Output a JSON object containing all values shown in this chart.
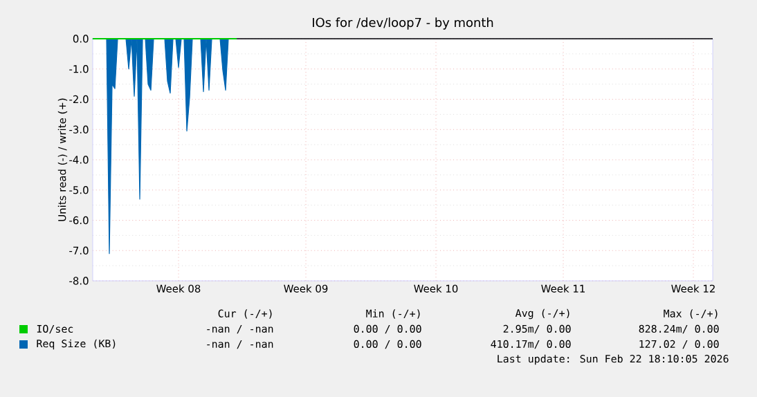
{
  "chart_data": {
    "type": "area",
    "title": "IOs for /dev/loop7 - by month",
    "ylabel": "Units read (-) / write (+)",
    "categories": [
      null,
      null,
      null,
      null,
      null,
      null,
      null,
      null,
      null,
      null,
      null,
      null,
      null,
      null,
      null,
      null,
      null,
      null,
      null,
      null,
      null,
      null,
      null,
      null,
      null,
      null,
      null,
      null,
      null,
      null,
      null,
      "Week 08",
      null,
      null,
      null,
      null,
      null,
      null,
      null,
      null,
      null,
      null,
      null,
      null,
      null,
      null,
      null,
      null,
      null,
      null,
      null,
      null,
      null,
      null,
      null,
      null,
      null,
      null,
      null,
      null,
      null,
      null,
      null,
      null,
      null,
      null,
      null,
      null,
      null,
      null,
      null,
      null,
      null,
      null,
      null,
      null,
      null,
      "Week 09",
      null,
      null,
      null,
      null,
      null,
      null,
      null,
      null,
      null,
      null,
      null,
      null,
      null,
      null,
      null,
      null,
      null,
      null,
      null,
      null,
      null,
      null,
      null,
      null,
      null,
      null,
      null,
      null,
      null,
      null,
      null,
      null,
      null,
      null,
      null,
      null,
      null,
      null,
      null,
      null,
      null,
      null,
      null,
      null,
      null,
      null,
      "Week 10",
      null,
      null,
      null,
      null,
      null,
      null,
      null,
      null,
      null,
      null,
      null,
      null,
      null,
      null,
      null,
      null,
      null,
      null,
      null,
      null,
      null,
      null,
      null,
      null,
      null,
      null,
      null,
      null,
      null,
      null,
      null,
      null,
      null,
      null,
      null,
      null,
      null,
      null,
      null,
      null,
      null,
      null,
      null,
      null,
      null,
      "Week 11",
      null,
      null,
      null,
      null,
      null,
      null,
      null,
      null,
      null,
      null,
      null,
      null,
      null,
      null,
      null,
      null,
      null,
      null,
      null,
      null,
      null,
      null,
      null,
      null,
      null,
      null,
      null,
      null,
      null,
      null,
      null,
      null,
      null,
      null,
      null,
      null,
      null,
      null,
      null,
      null,
      null,
      null,
      null,
      null,
      null,
      null,
      "Week 12",
      null,
      null,
      null,
      null,
      null,
      null,
      null
    ],
    "ylim": [
      -8,
      0
    ],
    "yticks": [
      {
        "value": -8,
        "label": "-8.0"
      },
      {
        "value": -7,
        "label": "-7.0"
      },
      {
        "value": -6,
        "label": "-6.0"
      },
      {
        "value": -5,
        "label": "-5.0"
      },
      {
        "value": -4,
        "label": "-4.0"
      },
      {
        "value": -3,
        "label": "-3.0"
      },
      {
        "value": -2,
        "label": "-2.0"
      },
      {
        "value": -1,
        "label": "-1.0"
      },
      {
        "value": 0,
        "label": "0.0"
      }
    ],
    "grid": true,
    "legend": "bottom",
    "series": [
      {
        "name": "IO/sec",
        "color": "#00cc00",
        "type": "line",
        "values": [
          0,
          0,
          0,
          0,
          0,
          0,
          0,
          0,
          0,
          0,
          0,
          0,
          0,
          0,
          0,
          0,
          0,
          0,
          0,
          0,
          0,
          0,
          0,
          0,
          0,
          0,
          0,
          0,
          0,
          0,
          0,
          0,
          0,
          0,
          0,
          0,
          0,
          0,
          0,
          0,
          0,
          0,
          0,
          0,
          0,
          0,
          0,
          0,
          0,
          0,
          0,
          0,
          0,
          null,
          null,
          null,
          null,
          null,
          null,
          null,
          null,
          null,
          null,
          null,
          null,
          null,
          null,
          null,
          null,
          null,
          null,
          null,
          null,
          null,
          null,
          null,
          null,
          null,
          null,
          null,
          null,
          null,
          null,
          null,
          null,
          null,
          null,
          null,
          null,
          null,
          null,
          null,
          null,
          null,
          null,
          null,
          null,
          null,
          null,
          null,
          null,
          null,
          null,
          null,
          null,
          null,
          null,
          null,
          null,
          null,
          null,
          null,
          null,
          null,
          null,
          null,
          null,
          null,
          null,
          null,
          null,
          null,
          null,
          null,
          null,
          null,
          null,
          null,
          null,
          null,
          null,
          null,
          null,
          null,
          null,
          null,
          null,
          null,
          null,
          null,
          null,
          null,
          null,
          null,
          null,
          null,
          null,
          null,
          null,
          null,
          null,
          null,
          null,
          null,
          null,
          null,
          null,
          null,
          null,
          null,
          null,
          null,
          null,
          null,
          null,
          null,
          null,
          null,
          null,
          null,
          null,
          null,
          null,
          null,
          null,
          null,
          null,
          null,
          null,
          null,
          null,
          null,
          null,
          null,
          null,
          null,
          null,
          null,
          null,
          null,
          null,
          null,
          null,
          null,
          null,
          null,
          null,
          null,
          null,
          null,
          null,
          null,
          null,
          null,
          null,
          null,
          null,
          null,
          null,
          null,
          null,
          null,
          null,
          null,
          null,
          null,
          null,
          null,
          null,
          null,
          null,
          null,
          null,
          null,
          null
        ]
      },
      {
        "name": "Req Size (KB)",
        "color": "#0066b3",
        "values": [
          0,
          0,
          0,
          0,
          0,
          0,
          -7.1,
          -1.5,
          -1.65,
          0,
          0,
          0,
          0,
          -1.0,
          0,
          -1.9,
          0,
          -5.3,
          0,
          0,
          -1.5,
          -1.7,
          0,
          0,
          0,
          0,
          0,
          -1.4,
          -1.8,
          0,
          0,
          -0.95,
          0,
          0,
          -3.05,
          -1.95,
          0,
          0,
          0,
          0,
          -1.75,
          0,
          -1.7,
          0,
          0,
          0,
          0,
          -1.05,
          -1.7,
          0,
          0,
          0,
          0,
          null,
          null,
          null,
          null,
          null,
          null,
          null,
          null,
          null,
          null,
          null,
          null,
          null,
          null,
          null,
          null,
          null,
          null,
          null,
          null,
          null,
          null,
          null,
          null,
          null,
          null,
          null,
          null,
          null,
          null,
          null,
          null,
          null,
          null,
          null,
          null,
          null,
          null,
          null,
          null,
          null,
          null,
          null,
          null,
          null,
          null,
          null,
          null,
          null,
          null,
          null,
          null,
          null,
          null,
          null,
          null,
          null,
          null,
          null,
          null,
          null,
          null,
          null,
          null,
          null,
          null,
          null,
          null,
          null,
          null,
          null,
          null,
          null,
          null,
          null,
          null,
          null,
          null,
          null,
          null,
          null,
          null,
          null,
          null,
          null,
          null,
          null,
          null,
          null,
          null,
          null,
          null,
          null,
          null,
          null,
          null,
          null,
          null,
          null,
          null,
          null,
          null,
          null,
          null,
          null,
          null,
          null,
          null,
          null,
          null,
          null,
          null,
          null,
          null,
          null,
          null,
          null,
          null,
          null,
          null,
          null,
          null,
          null,
          null,
          null,
          null,
          null,
          null,
          null,
          null,
          null,
          null,
          null,
          null,
          null,
          null,
          null,
          null,
          null,
          null,
          null,
          null,
          null,
          null,
          null,
          null,
          null,
          null,
          null,
          null,
          null,
          null,
          null,
          null,
          null,
          null,
          null,
          null,
          null,
          null,
          null,
          null,
          null,
          null,
          null,
          null,
          null,
          null,
          null,
          null,
          null,
          null
        ]
      }
    ],
    "annotations": [
      "Cur (-/+)",
      "Min (-/+)",
      "Avg (-/+)",
      "Max (-/+)",
      "-nan / -nan",
      "0.00 / 0.00",
      "2.95m/ 0.00",
      "828.24m/ 0.00",
      "-nan / -nan",
      "0.00 / 0.00",
      "410.17m/ 0.00",
      "127.02 / 0.00",
      "Last update: Sun Feb 22 18:10:05 2026"
    ]
  }
}
